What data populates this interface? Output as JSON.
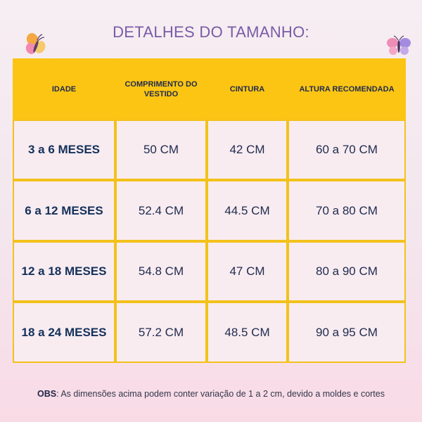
{
  "title": "DETALHES DO TAMANHO:",
  "decor": {
    "left": "butterfly-orange-pink",
    "right": "butterfly-pink-purple"
  },
  "colors": {
    "header": "#fcc514",
    "border": "#f3c21a",
    "cell": "#f8ecf1",
    "title": "#7a5aa6",
    "text": "#1f2a4d"
  },
  "table": {
    "headers": [
      "IDADE",
      "COMPRIMENTO DO VESTIDO",
      "CINTURA",
      "ALTURA RECOMENDADA"
    ],
    "rows": [
      [
        "3 a 6 MESES",
        "50 CM",
        "42 CM",
        "60 a 70 CM"
      ],
      [
        "6 a 12 MESES",
        "52.4 CM",
        "44.5 CM",
        "70 a 80 CM"
      ],
      [
        "12 a 18 MESES",
        "54.8 CM",
        "47 CM",
        "80 a 90 CM"
      ],
      [
        "18 a 24 MESES",
        "57.2 CM",
        "48.5 CM",
        "90 a 95 CM"
      ]
    ]
  },
  "note": {
    "label": "OBS",
    "text": ": As dimensões acima podem conter variação de 1 a 2 cm, devido a moldes e cortes"
  }
}
